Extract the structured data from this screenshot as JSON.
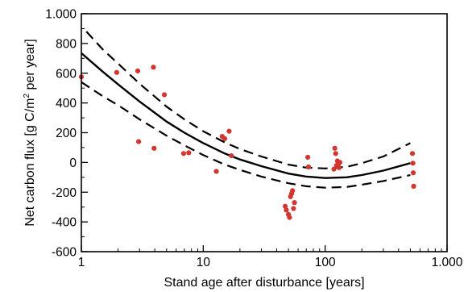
{
  "chart_data": {
    "type": "scatter",
    "title": "",
    "xlabel": "Stand age after disturbance [years]",
    "ylabel": {
      "before": "Net carbon flux [g C/m",
      "sup": "2",
      "after": " per year]"
    },
    "xscale": "log",
    "xlim": [
      1,
      1000
    ],
    "ylim": [
      -600,
      1000
    ],
    "xticks": [
      {
        "value": 1,
        "label": "1"
      },
      {
        "value": 10,
        "label": "10"
      },
      {
        "value": 100,
        "label": "100"
      },
      {
        "value": 1000,
        "label": "1.000"
      }
    ],
    "yticks": [
      {
        "value": 1000,
        "label": "1.000"
      },
      {
        "value": 800,
        "label": "800"
      },
      {
        "value": 600,
        "label": "600"
      },
      {
        "value": 400,
        "label": "400"
      },
      {
        "value": 200,
        "label": "200"
      },
      {
        "value": 0,
        "label": "0"
      },
      {
        "value": -200,
        "label": "-200"
      },
      {
        "value": -400,
        "label": "-400"
      },
      {
        "value": -600,
        "label": "-600"
      }
    ],
    "grid": false,
    "legend": "none",
    "point_color": "#d2362f",
    "points": [
      {
        "x": 1,
        "y": 575
      },
      {
        "x": 1.95,
        "y": 605
      },
      {
        "x": 2.9,
        "y": 615
      },
      {
        "x": 2.95,
        "y": 140
      },
      {
        "x": 3.9,
        "y": 640
      },
      {
        "x": 3.95,
        "y": 95
      },
      {
        "x": 4.8,
        "y": 455
      },
      {
        "x": 6.9,
        "y": 60
      },
      {
        "x": 7.6,
        "y": 65
      },
      {
        "x": 12.8,
        "y": -60
      },
      {
        "x": 14.3,
        "y": 175
      },
      {
        "x": 15,
        "y": 160
      },
      {
        "x": 16.3,
        "y": 210
      },
      {
        "x": 17,
        "y": 45
      },
      {
        "x": 47,
        "y": -295
      },
      {
        "x": 48,
        "y": -320
      },
      {
        "x": 50,
        "y": -350
      },
      {
        "x": 51,
        "y": -370
      },
      {
        "x": 52,
        "y": -230
      },
      {
        "x": 53,
        "y": -210
      },
      {
        "x": 54,
        "y": -190
      },
      {
        "x": 55,
        "y": -310
      },
      {
        "x": 56,
        "y": -270
      },
      {
        "x": 72,
        "y": 35
      },
      {
        "x": 73,
        "y": -30
      },
      {
        "x": 118,
        "y": -45
      },
      {
        "x": 120,
        "y": 95
      },
      {
        "x": 122,
        "y": 60
      },
      {
        "x": 124,
        "y": -20
      },
      {
        "x": 126,
        "y": 10
      },
      {
        "x": 128,
        "y": -10
      },
      {
        "x": 130,
        "y": -35
      },
      {
        "x": 132,
        "y": 0
      },
      {
        "x": 520,
        "y": 60
      },
      {
        "x": 525,
        "y": -5
      },
      {
        "x": 528,
        "y": -70
      },
      {
        "x": 532,
        "y": -160
      }
    ],
    "fit_line": {
      "x": [
        1,
        1.5,
        2,
        3,
        5,
        7,
        10,
        15,
        20,
        30,
        50,
        70,
        100,
        150,
        200,
        300,
        500
      ],
      "y": [
        735,
        610,
        525,
        410,
        275,
        200,
        130,
        60,
        20,
        -25,
        -75,
        -95,
        -105,
        -100,
        -85,
        -55,
        -5
      ]
    },
    "confidence_upper": {
      "x": [
        1.1,
        1.5,
        2,
        3,
        5,
        7,
        10,
        15,
        20,
        30,
        50,
        70,
        100,
        150,
        200,
        300,
        500
      ],
      "y": [
        880,
        760,
        665,
        530,
        375,
        290,
        210,
        135,
        90,
        40,
        -15,
        -35,
        -40,
        -30,
        -5,
        40,
        130
      ]
    },
    "confidence_lower": {
      "x": [
        1,
        1.5,
        2,
        3,
        5,
        7,
        10,
        15,
        20,
        30,
        50,
        70,
        100,
        150,
        200,
        300,
        500
      ],
      "y": [
        540,
        445,
        385,
        290,
        180,
        115,
        50,
        -15,
        -50,
        -95,
        -140,
        -160,
        -170,
        -165,
        -150,
        -125,
        -85
      ]
    }
  }
}
